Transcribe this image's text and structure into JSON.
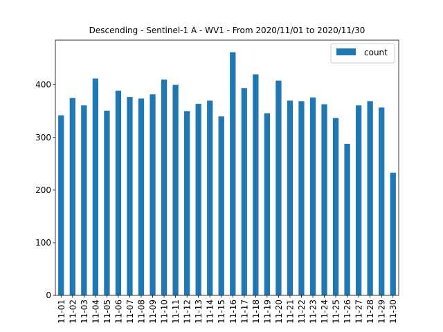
{
  "chart_data": {
    "type": "bar",
    "title": "Descending - Sentinel-1 A - WV1 - From 2020/11/01 to 2020/11/30",
    "xlabel": "",
    "ylabel": "",
    "categories": [
      "11-01",
      "11-02",
      "11-03",
      "11-04",
      "11-05",
      "11-06",
      "11-07",
      "11-08",
      "11-09",
      "11-10",
      "11-11",
      "11-12",
      "11-13",
      "11-14",
      "11-15",
      "11-16",
      "11-17",
      "11-18",
      "11-19",
      "11-20",
      "11-21",
      "11-22",
      "11-23",
      "11-24",
      "11-25",
      "11-26",
      "11-27",
      "11-28",
      "11-29",
      "11-30"
    ],
    "series": [
      {
        "name": "count",
        "color": "#1f77b4",
        "values": [
          342,
          375,
          361,
          412,
          351,
          389,
          377,
          374,
          382,
          410,
          400,
          350,
          364,
          370,
          340,
          462,
          394,
          420,
          346,
          408,
          370,
          369,
          376,
          363,
          337,
          288,
          361,
          369,
          357,
          233
        ]
      }
    ],
    "yticks": [
      0,
      100,
      200,
      300,
      400
    ],
    "ylim": [
      0,
      485
    ],
    "grid": false,
    "legend_position": "top-right"
  }
}
